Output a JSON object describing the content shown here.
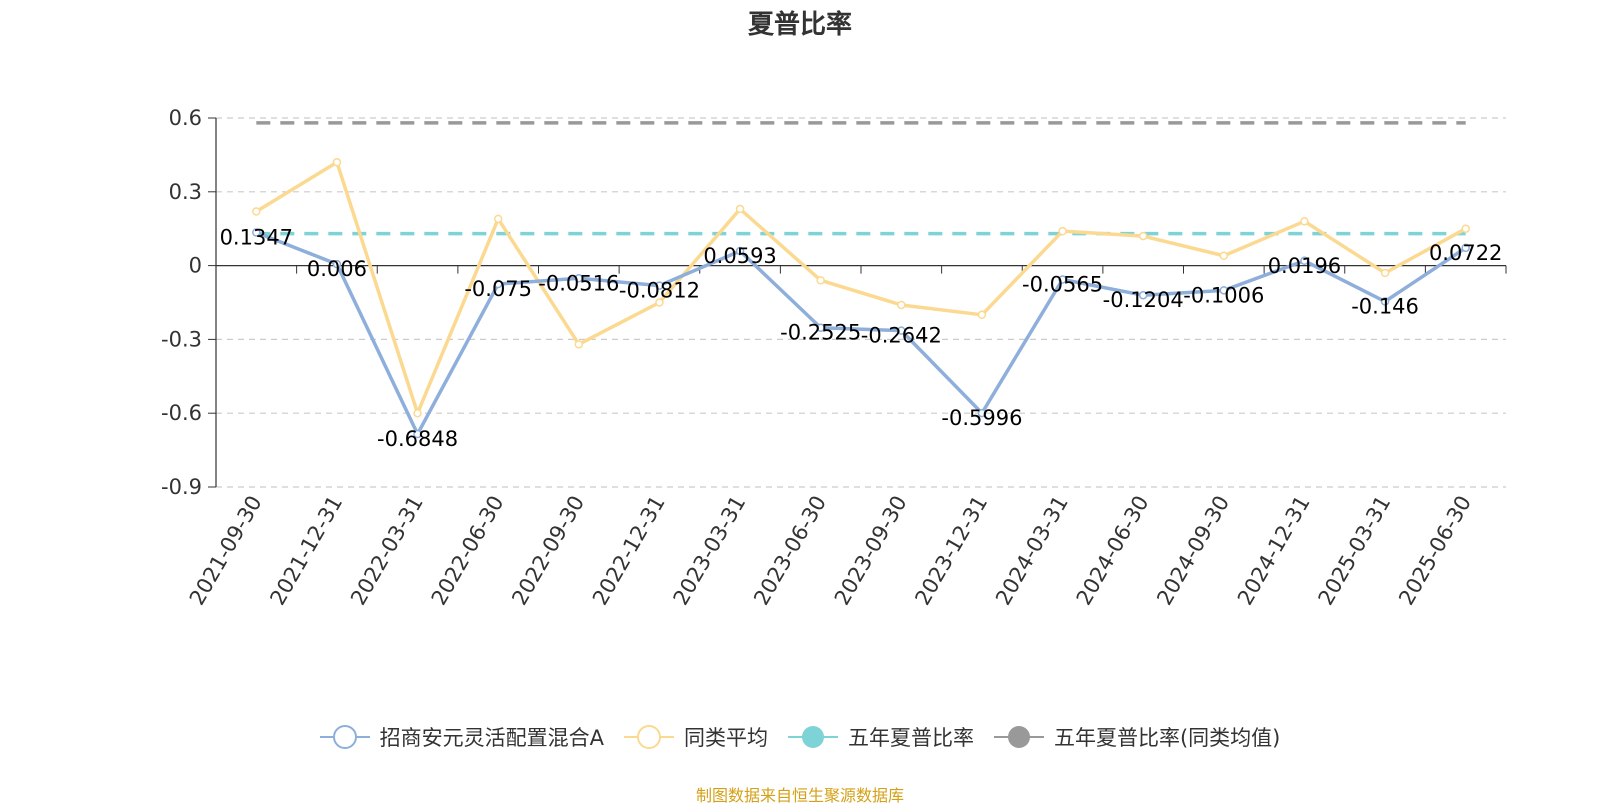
{
  "title": "夏普比率",
  "source": "制图数据来自恒生聚源数据库",
  "chart_data": {
    "type": "line",
    "categories": [
      "2021-09-30",
      "2021-12-31",
      "2022-03-31",
      "2022-06-30",
      "2022-09-30",
      "2022-12-31",
      "2023-03-31",
      "2023-06-30",
      "2023-09-30",
      "2023-12-31",
      "2024-03-31",
      "2024-06-30",
      "2024-09-30",
      "2024-12-31",
      "2025-03-31",
      "2025-06-30"
    ],
    "ylim": [
      -0.9,
      0.6
    ],
    "yticks": [
      0.6,
      0.3,
      0,
      -0.3,
      -0.6,
      -0.9
    ],
    "ytick_labels": [
      "0.6",
      "0.3",
      "0",
      "-0.3",
      "-0.6",
      "-0.9"
    ],
    "grid": true,
    "legend_position": "bottom",
    "series": [
      {
        "name": "招商安元灵活配置混合A",
        "color": "#8eaedb",
        "values": [
          0.1347,
          0.006,
          -0.6848,
          -0.075,
          -0.0516,
          -0.0812,
          0.0593,
          -0.2525,
          -0.2642,
          -0.5996,
          -0.0565,
          -0.1204,
          -0.1006,
          0.0196,
          -0.146,
          0.0722
        ],
        "labels": [
          "0.1347",
          "0.006",
          "-0.6848",
          "-0.075",
          "-0.0516",
          "-0.0812",
          "0.0593",
          "-0.2525",
          "-0.2642",
          "-0.5996",
          "-0.0565",
          "-0.1204",
          "-0.1006",
          "0.0196",
          "-0.146",
          "0.0722"
        ]
      },
      {
        "name": "同类平均",
        "color": "#fbd990",
        "values": [
          0.22,
          0.42,
          -0.6,
          0.19,
          -0.32,
          -0.15,
          0.23,
          -0.06,
          -0.16,
          -0.2,
          0.14,
          0.12,
          0.04,
          0.18,
          -0.03,
          0.15
        ]
      },
      {
        "name": "五年夏普比率",
        "color": "#7dd3d6",
        "value": 0.13
      },
      {
        "name": "五年夏普比率(同类均值)",
        "color": "#999999",
        "value": 0.58
      }
    ]
  }
}
